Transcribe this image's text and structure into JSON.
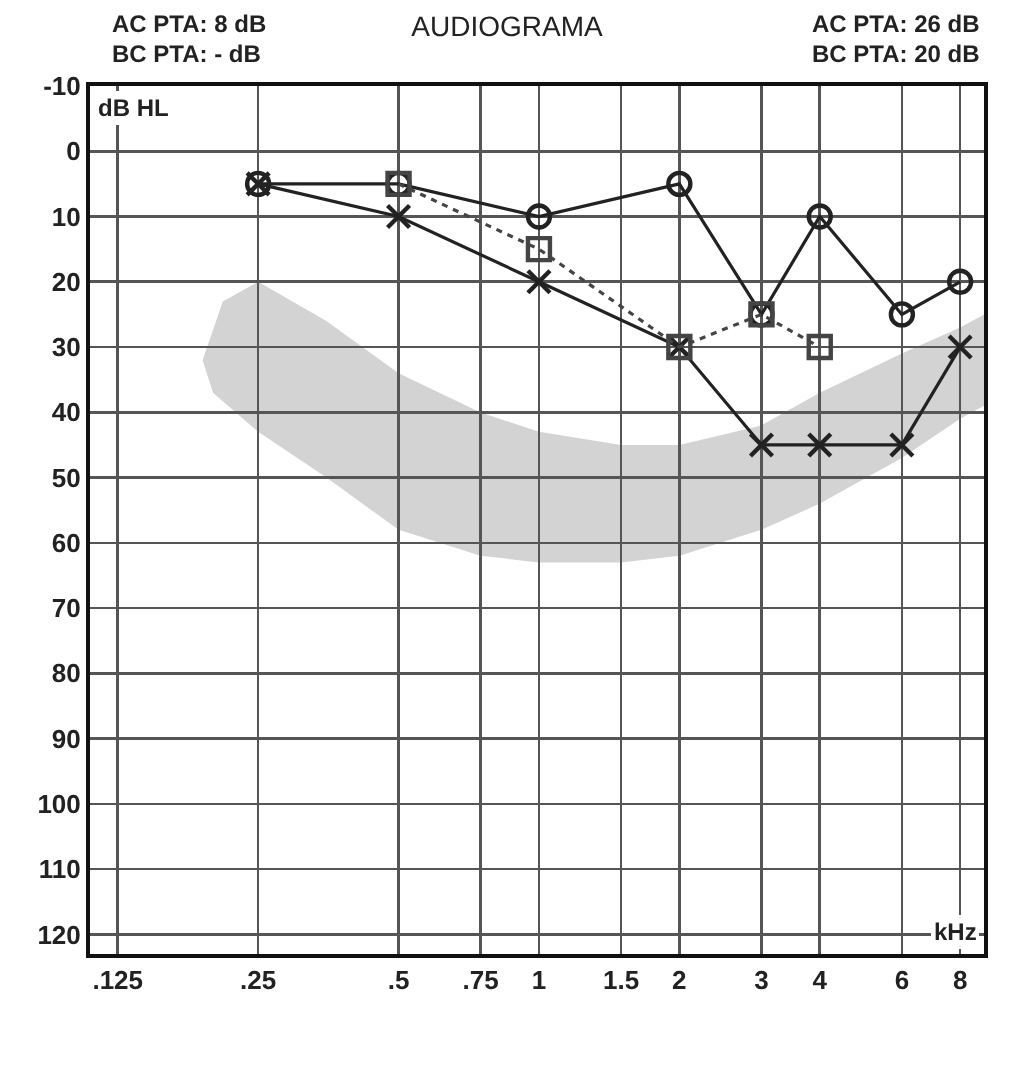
{
  "chart_data": {
    "type": "line",
    "title": "AUDIOGRAMA",
    "xlabel": "kHz",
    "ylabel": "dB HL",
    "log": "x",
    "annotations": [
      "AC PTA: 8 dB",
      "BC PTA: - dB",
      "AC PTA: 26 dB",
      "BC PTA: 20 dB"
    ],
    "xlim": [
      0.109,
      9
    ],
    "xticks": [
      {
        "value": 0.125,
        "label": ".125"
      },
      {
        "value": 0.25,
        "label": ".25"
      },
      {
        "value": 0.5,
        "label": ".5"
      },
      {
        "value": 0.75,
        "label": ".75"
      },
      1,
      1.5,
      2,
      3,
      4,
      6,
      8
    ],
    "ylim": [
      123,
      -10
    ],
    "yticks": [
      -10,
      0,
      10,
      20,
      30,
      40,
      50,
      60,
      70,
      80,
      90,
      100,
      110,
      120
    ],
    "grid": true,
    "series": [
      {
        "color": "#222222",
        "marker": "circle",
        "line_style": "solid",
        "x": [
          0.25,
          0.5,
          1,
          2,
          3,
          4,
          6,
          8
        ],
        "values": [
          5,
          5,
          10,
          5,
          25,
          10,
          25,
          20
        ]
      },
      {
        "color": "#222222",
        "marker": "cross",
        "line_style": "solid",
        "x": [
          0.25,
          0.5,
          1,
          2,
          3,
          4,
          6,
          8
        ],
        "values": [
          5,
          10,
          20,
          30,
          45,
          45,
          45,
          30
        ]
      },
      {
        "color": "#444444",
        "marker": "square",
        "line_style": "dotted",
        "x": [
          0.5,
          1,
          2,
          3,
          4
        ],
        "values": [
          5,
          15,
          30,
          25,
          30
        ]
      }
    ]
  }
}
